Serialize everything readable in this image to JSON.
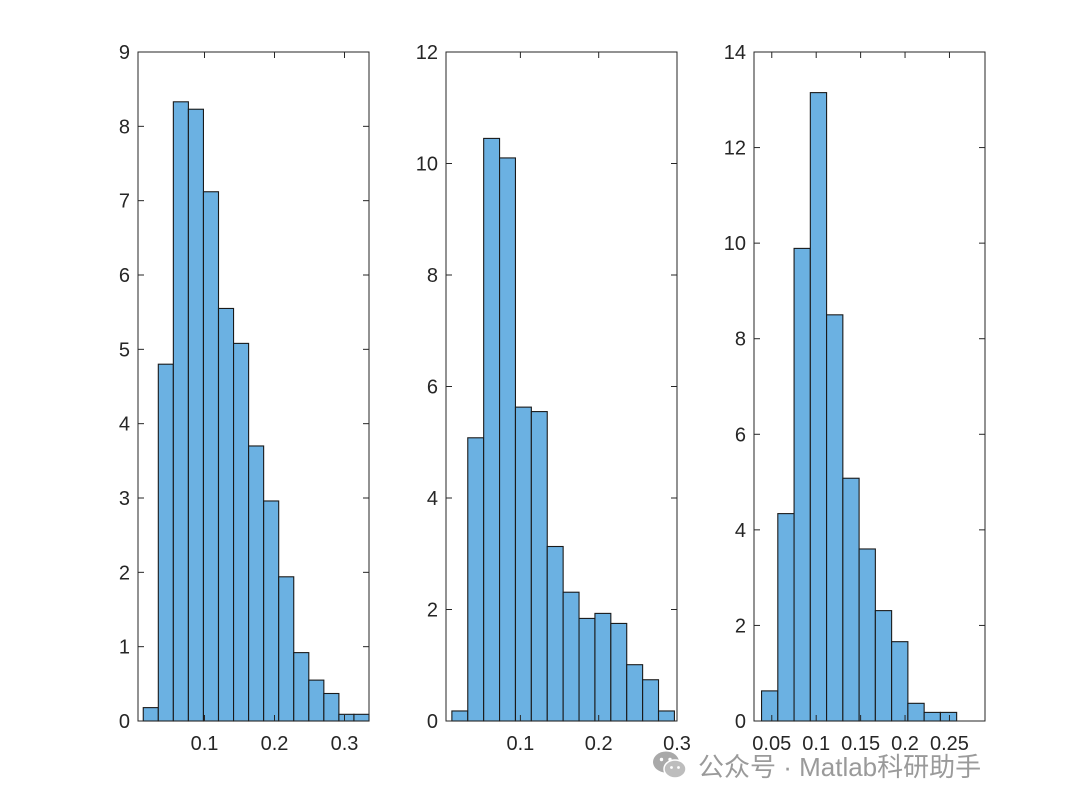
{
  "chart_data": [
    {
      "type": "histogram",
      "bin_start": 0.0125,
      "bin_width": 0.0215,
      "values": [
        0.18,
        4.8,
        8.33,
        8.23,
        7.12,
        5.55,
        5.08,
        3.7,
        2.96,
        1.94,
        0.92,
        0.55,
        0.37,
        0.09,
        0.09
      ],
      "xlim": [
        0.005,
        0.335
      ],
      "ylim": [
        0,
        9
      ],
      "xticks": [
        0.1,
        0.2,
        0.3
      ],
      "xtick_labels": [
        "0.1",
        "0.2",
        "0.3"
      ],
      "yticks": [
        0,
        1,
        2,
        3,
        4,
        5,
        6,
        7,
        8,
        9
      ],
      "ytick_labels": [
        "0",
        "1",
        "2",
        "3",
        "4",
        "5",
        "6",
        "7",
        "8",
        "9"
      ],
      "bar_color": "#6bb1e2",
      "edge_color": "#1a1a1a",
      "grid": false
    },
    {
      "type": "histogram",
      "bin_start": 0.0125,
      "bin_width": 0.0203,
      "values": [
        0.18,
        5.08,
        10.45,
        10.1,
        5.63,
        5.55,
        3.13,
        2.31,
        1.84,
        1.93,
        1.75,
        1.01,
        0.74,
        0.18
      ],
      "xlim": [
        0.005,
        0.3
      ],
      "ylim": [
        0,
        12
      ],
      "xticks": [
        0.1,
        0.2,
        0.3
      ],
      "xtick_labels": [
        "0.1",
        "0.2",
        "0.3"
      ],
      "yticks": [
        0,
        2,
        4,
        6,
        8,
        10,
        12
      ],
      "ytick_labels": [
        "0",
        "2",
        "4",
        "6",
        "8",
        "10",
        "12"
      ],
      "bar_color": "#6bb1e2",
      "edge_color": "#1a1a1a",
      "grid": false
    },
    {
      "type": "histogram",
      "bin_start": 0.0385,
      "bin_width": 0.0183,
      "values": [
        0.63,
        4.34,
        9.89,
        13.15,
        8.5,
        5.08,
        3.6,
        2.31,
        1.66,
        0.37,
        0.18,
        0.18
      ],
      "xlim": [
        0.03,
        0.29
      ],
      "ylim": [
        0,
        14
      ],
      "xticks": [
        0.05,
        0.1,
        0.15,
        0.2,
        0.25
      ],
      "xtick_labels": [
        "0.05",
        "0.1",
        "0.15",
        "0.2",
        "0.25"
      ],
      "yticks": [
        0,
        2,
        4,
        6,
        8,
        10,
        12,
        14
      ],
      "ytick_labels": [
        "0",
        "2",
        "4",
        "6",
        "8",
        "10",
        "12",
        "14"
      ],
      "bar_color": "#6bb1e2",
      "edge_color": "#1a1a1a",
      "grid": false
    }
  ],
  "watermark": {
    "text": "公众号 · Matlab科研助手",
    "icon": "wechat-icon",
    "color": "#9a9a9a"
  }
}
